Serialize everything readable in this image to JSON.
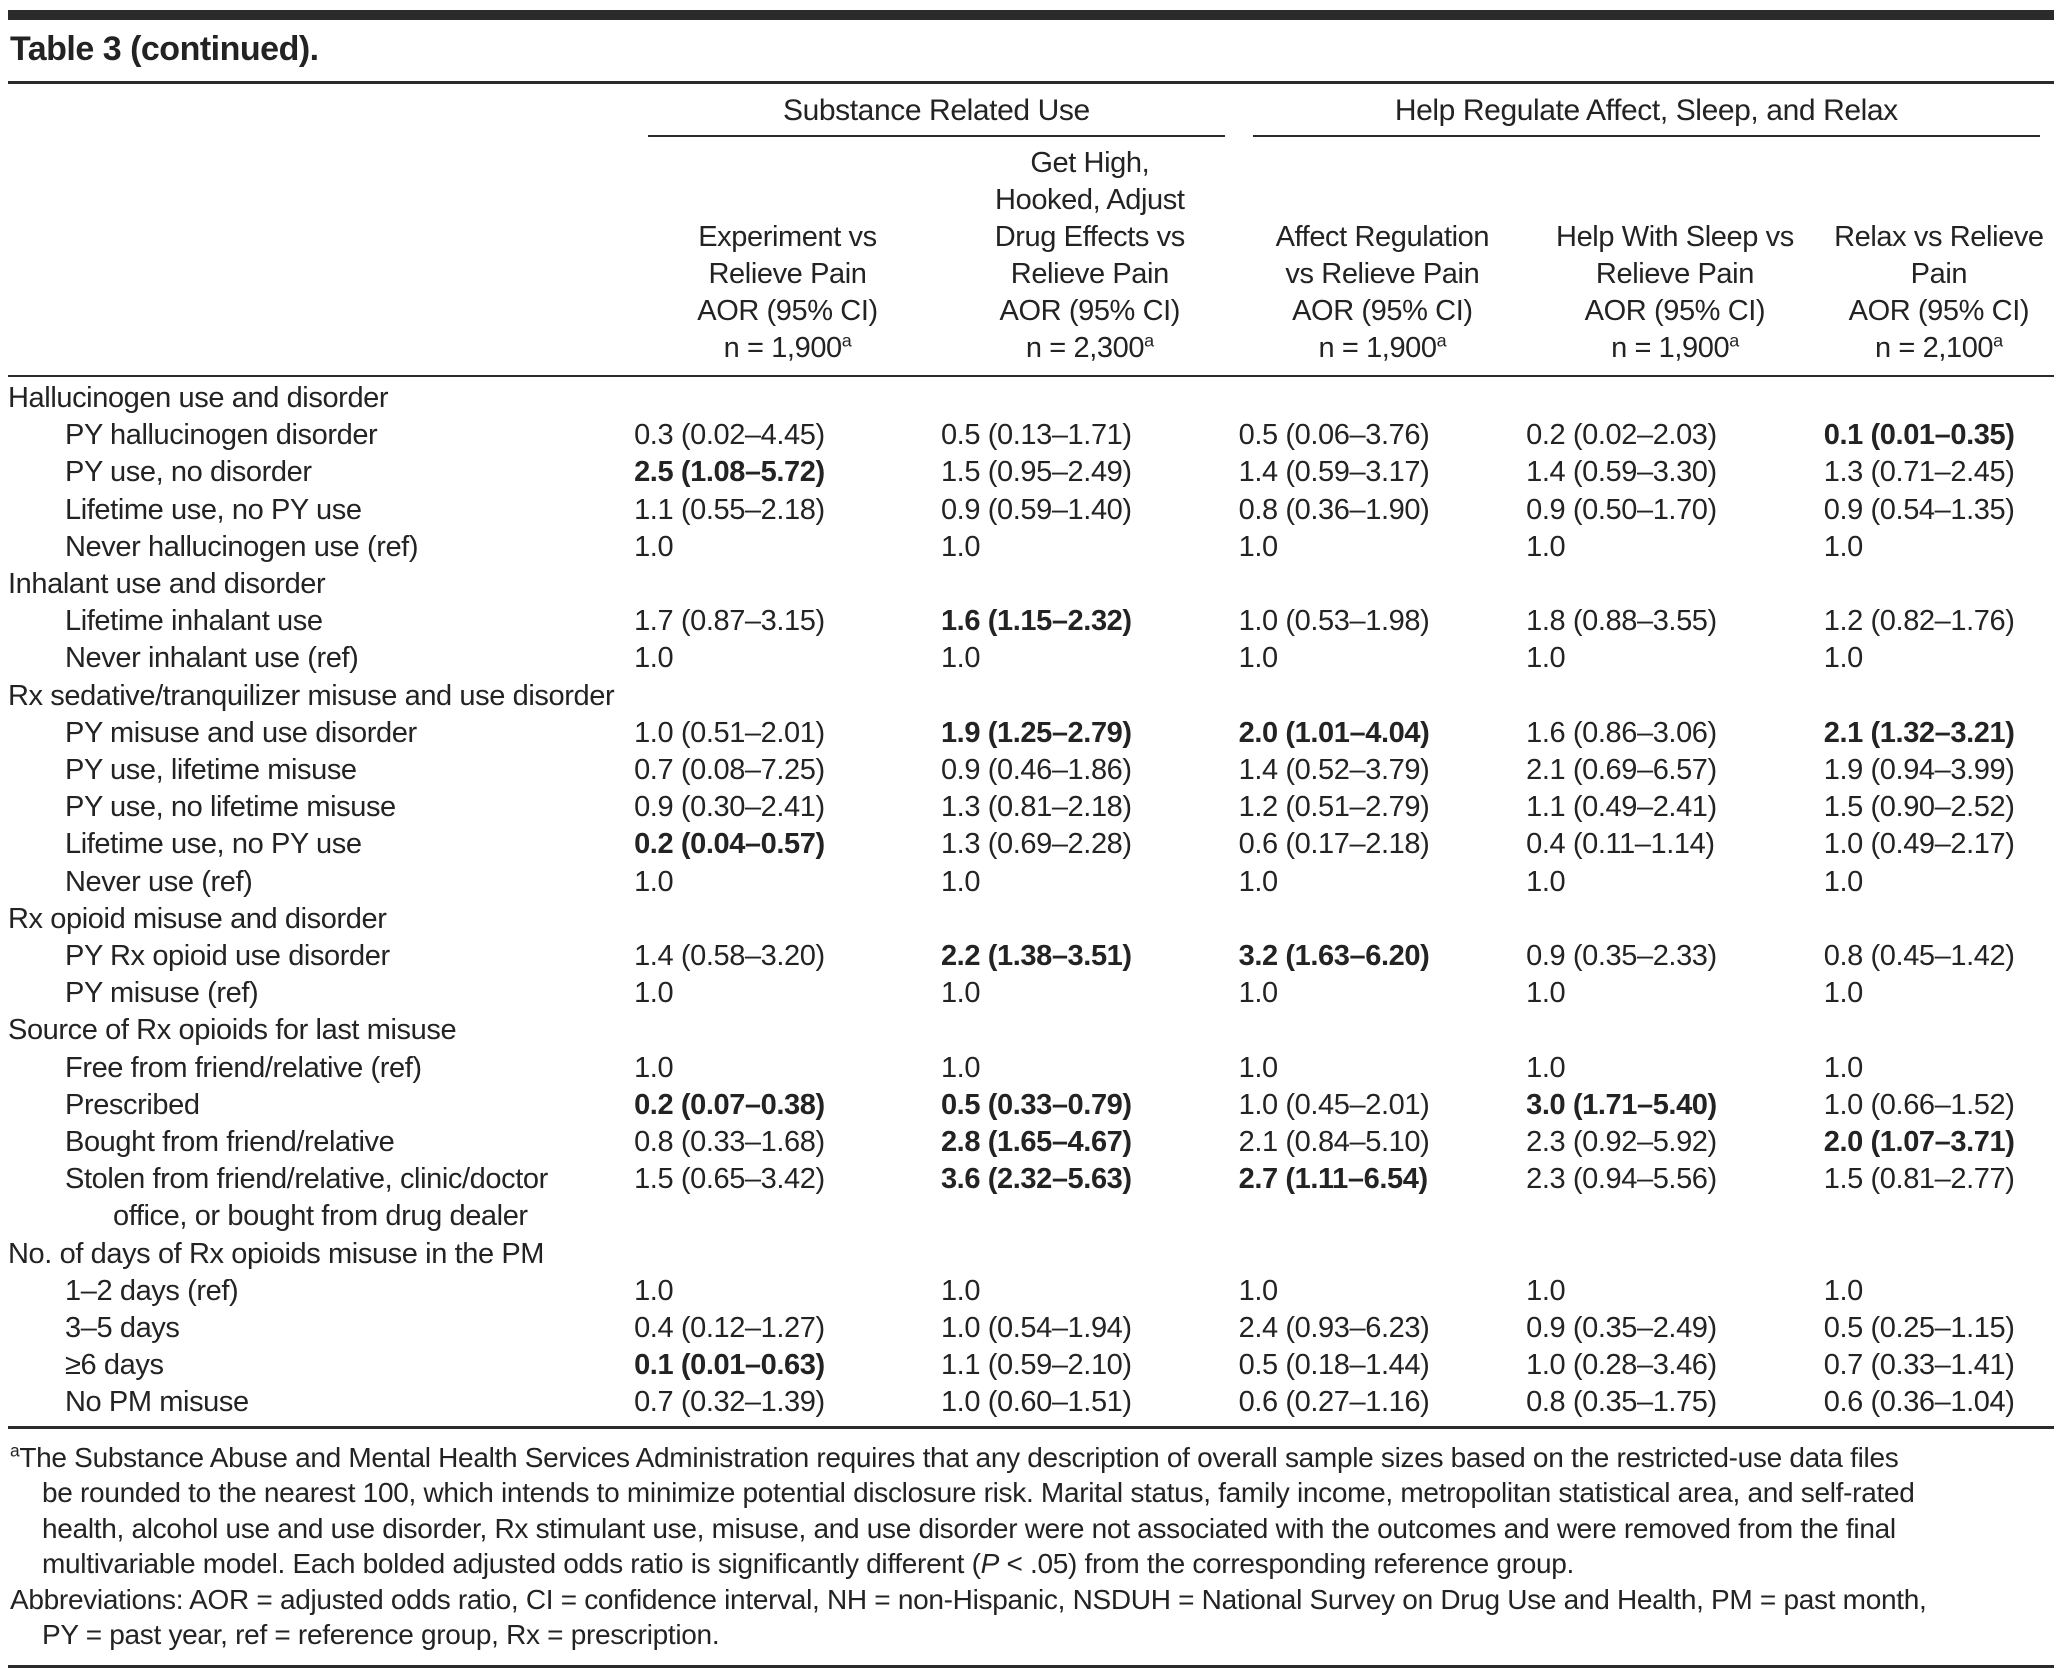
{
  "title": "Table 3 (continued).",
  "table": {
    "groups": [
      {
        "label": "Substance Related Use"
      },
      {
        "label": "Help Regulate Affect, Sleep, and Relax"
      }
    ],
    "columns": [
      {
        "text": "Experiment vs\nRelieve Pain\nAOR (95% CI)\nn = 1,900",
        "sup": "a"
      },
      {
        "text": "Get High,\nHooked, Adjust\nDrug Effects vs\nRelieve Pain\nAOR (95% CI)\nn = 2,300",
        "sup": "a"
      },
      {
        "text": "Affect Regulation\nvs Relieve Pain\nAOR (95% CI)\nn = 1,900",
        "sup": "a"
      },
      {
        "text": "Help With Sleep vs\nRelieve Pain\nAOR (95% CI)\nn = 1,900",
        "sup": "a"
      },
      {
        "text": "Relax vs Relieve\nPain\nAOR (95% CI)\nn = 2,100",
        "sup": "a"
      }
    ],
    "rows": [
      {
        "type": "section",
        "label": "Hallucinogen use and disorder"
      },
      {
        "type": "data",
        "label": "PY hallucinogen disorder",
        "values": [
          "0.3 (0.02–4.45)",
          "0.5 (0.13–1.71)",
          "0.5 (0.06–3.76)",
          "0.2 (0.02–2.03)",
          "0.1 (0.01–0.35)"
        ],
        "bold": [
          4
        ]
      },
      {
        "type": "data",
        "label": "PY use, no disorder",
        "values": [
          "2.5 (1.08–5.72)",
          "1.5 (0.95–2.49)",
          "1.4 (0.59–3.17)",
          "1.4 (0.59–3.30)",
          "1.3 (0.71–2.45)"
        ],
        "bold": [
          0
        ]
      },
      {
        "type": "data",
        "label": "Lifetime use, no PY use",
        "values": [
          "1.1 (0.55–2.18)",
          "0.9 (0.59–1.40)",
          "0.8 (0.36–1.90)",
          "0.9 (0.50–1.70)",
          "0.9 (0.54–1.35)"
        ],
        "bold": []
      },
      {
        "type": "data",
        "label": "Never hallucinogen use (ref)",
        "values": [
          "1.0",
          "1.0",
          "1.0",
          "1.0",
          "1.0"
        ],
        "bold": []
      },
      {
        "type": "section",
        "label": "Inhalant use and disorder"
      },
      {
        "type": "data",
        "label": "Lifetime inhalant use",
        "values": [
          "1.7 (0.87–3.15)",
          "1.6 (1.15–2.32)",
          "1.0 (0.53–1.98)",
          "1.8 (0.88–3.55)",
          "1.2 (0.82–1.76)"
        ],
        "bold": [
          1
        ]
      },
      {
        "type": "data",
        "label": "Never inhalant use (ref)",
        "values": [
          "1.0",
          "1.0",
          "1.0",
          "1.0",
          "1.0"
        ],
        "bold": []
      },
      {
        "type": "section",
        "label": "Rx sedative/tranquilizer misuse and use disorder"
      },
      {
        "type": "data",
        "label": "PY misuse and use disorder",
        "values": [
          "1.0 (0.51–2.01)",
          "1.9 (1.25–2.79)",
          "2.0 (1.01–4.04)",
          "1.6 (0.86–3.06)",
          "2.1 (1.32–3.21)"
        ],
        "bold": [
          1,
          2,
          4
        ]
      },
      {
        "type": "data",
        "label": "PY use, lifetime misuse",
        "values": [
          "0.7 (0.08–7.25)",
          "0.9 (0.46–1.86)",
          "1.4 (0.52–3.79)",
          "2.1 (0.69–6.57)",
          "1.9 (0.94–3.99)"
        ],
        "bold": []
      },
      {
        "type": "data",
        "label": "PY use, no lifetime misuse",
        "values": [
          "0.9 (0.30–2.41)",
          "1.3 (0.81–2.18)",
          "1.2 (0.51–2.79)",
          "1.1 (0.49–2.41)",
          "1.5 (0.90–2.52)"
        ],
        "bold": []
      },
      {
        "type": "data",
        "label": "Lifetime use, no PY use",
        "values": [
          "0.2 (0.04–0.57)",
          "1.3 (0.69–2.28)",
          "0.6 (0.17–2.18)",
          "0.4 (0.11–1.14)",
          "1.0 (0.49–2.17)"
        ],
        "bold": [
          0
        ]
      },
      {
        "type": "data",
        "label": "Never use (ref)",
        "values": [
          "1.0",
          "1.0",
          "1.0",
          "1.0",
          "1.0"
        ],
        "bold": []
      },
      {
        "type": "section",
        "label": "Rx opioid misuse and disorder"
      },
      {
        "type": "data",
        "label": "PY Rx opioid use disorder",
        "values": [
          "1.4 (0.58–3.20)",
          "2.2 (1.38–3.51)",
          "3.2 (1.63–6.20)",
          "0.9 (0.35–2.33)",
          "0.8 (0.45–1.42)"
        ],
        "bold": [
          1,
          2
        ]
      },
      {
        "type": "data",
        "label": "PY misuse (ref)",
        "values": [
          "1.0",
          "1.0",
          "1.0",
          "1.0",
          "1.0"
        ],
        "bold": []
      },
      {
        "type": "section",
        "label": "Source of Rx opioids for last misuse"
      },
      {
        "type": "data",
        "label": "Free from friend/relative (ref)",
        "values": [
          "1.0",
          "1.0",
          "1.0",
          "1.0",
          "1.0"
        ],
        "bold": []
      },
      {
        "type": "data",
        "label": "Prescribed",
        "values": [
          "0.2 (0.07–0.38)",
          "0.5 (0.33–0.79)",
          "1.0 (0.45–2.01)",
          "3.0 (1.71–5.40)",
          "1.0 (0.66–1.52)"
        ],
        "bold": [
          0,
          1,
          3
        ]
      },
      {
        "type": "data",
        "label": "Bought from friend/relative",
        "values": [
          "0.8 (0.33–1.68)",
          "2.8 (1.65–4.67)",
          "2.1 (0.84–5.10)",
          "2.3 (0.92–5.92)",
          "2.0 (1.07–3.71)"
        ],
        "bold": [
          1,
          4
        ]
      },
      {
        "type": "data",
        "label": "Stolen from friend/relative, clinic/doctor",
        "label2": "office, or bought from drug dealer",
        "values": [
          "1.5 (0.65–3.42)",
          "3.6 (2.32–5.63)",
          "2.7 (1.11–6.54)",
          "2.3 (0.94–5.56)",
          "1.5 (0.81–2.77)"
        ],
        "bold": [
          1,
          2
        ]
      },
      {
        "type": "section",
        "label": "No. of days of Rx opioids misuse in the PM"
      },
      {
        "type": "data",
        "label": "1–2 days (ref)",
        "values": [
          "1.0",
          "1.0",
          "1.0",
          "1.0",
          "1.0"
        ],
        "bold": []
      },
      {
        "type": "data",
        "label": "3–5 days",
        "values": [
          "0.4 (0.12–1.27)",
          "1.0 (0.54–1.94)",
          "2.4 (0.93–6.23)",
          "0.9 (0.35–2.49)",
          "0.5 (0.25–1.15)"
        ],
        "bold": []
      },
      {
        "type": "data",
        "label": "≥6 days",
        "values": [
          "0.1 (0.01–0.63)",
          "1.1 (0.59–2.10)",
          "0.5 (0.18–1.44)",
          "1.0 (0.28–3.46)",
          "0.7 (0.33–1.41)"
        ],
        "bold": [
          0
        ]
      },
      {
        "type": "data",
        "label": "No PM misuse",
        "values": [
          "0.7 (0.32–1.39)",
          "1.0 (0.60–1.51)",
          "0.6 (0.27–1.16)",
          "0.8 (0.35–1.75)",
          "0.6 (0.36–1.04)"
        ],
        "bold": []
      }
    ]
  },
  "footnotes": {
    "a_sup": "a",
    "a_before_p": "The Substance Abuse and Mental Health Services Administration requires that any description of overall sample sizes based on the restricted-use data files\nbe rounded to the nearest 100, which intends to minimize potential disclosure risk. Marital status, family income, metropolitan statistical area, and self-rated\nhealth, alcohol use and use disorder, Rx stimulant use, misuse, and use disorder were not associated with the outcomes and were removed from the final\nmultivariable model. Each bolded adjusted odds ratio is significantly different (",
    "a_p": "P",
    "a_after_p": " < .05) from the corresponding reference group.",
    "abbreviations": "Abbreviations: AOR = adjusted odds ratio, CI = confidence interval, NH = non-Hispanic, NSDUH = National Survey on Drug Use and Health, PM = past month,\nPY = past year, ref = reference group, Rx = prescription."
  }
}
